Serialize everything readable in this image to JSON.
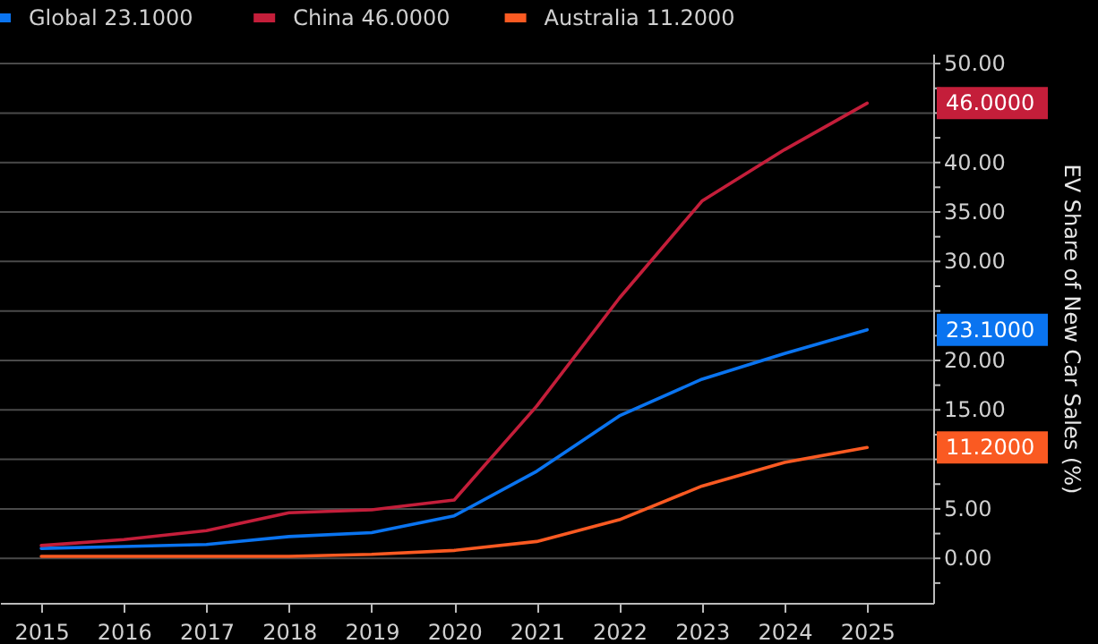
{
  "chart_data": {
    "type": "line",
    "ylabel": "EV Share of New Car Sales (%)",
    "x": [
      2015,
      2016,
      2017,
      2018,
      2019,
      2020,
      2021,
      2022,
      2023,
      2024,
      2025
    ],
    "series": [
      {
        "name": "Global 23.1000",
        "color": "#0a74f0",
        "values": [
          1.0,
          1.2,
          1.4,
          2.2,
          2.6,
          4.3,
          8.8,
          14.4,
          18.1,
          20.7,
          23.1
        ]
      },
      {
        "name": "China 46.0000",
        "color": "#c41e3a",
        "values": [
          1.3,
          1.9,
          2.8,
          4.6,
          4.9,
          5.9,
          15.4,
          26.3,
          36.1,
          41.3,
          46.0
        ]
      },
      {
        "name": "Australia 11.2000",
        "color": "#fa5a22",
        "values": [
          0.2,
          0.2,
          0.2,
          0.2,
          0.4,
          0.8,
          1.7,
          3.9,
          7.3,
          9.7,
          11.2
        ]
      }
    ],
    "annotations": [
      "23.1000",
      "46.0000",
      "11.2000"
    ],
    "xlim": [
      2014.5,
      2025.8
    ],
    "xticks": [
      2015,
      2016,
      2017,
      2018,
      2019,
      2020,
      2021,
      2022,
      2023,
      2024,
      2025
    ],
    "ylim": [
      -4.5,
      51
    ],
    "yticks": [
      {
        "value": -2.5,
        "label": null
      },
      {
        "value": 0,
        "label": "0.00"
      },
      {
        "value": 2.5,
        "label": null
      },
      {
        "value": 5,
        "label": "5.00"
      },
      {
        "value": 7.5,
        "label": null
      },
      {
        "value": 10,
        "label": null
      },
      {
        "value": 12.5,
        "label": null
      },
      {
        "value": 15,
        "label": "15.00"
      },
      {
        "value": 17.5,
        "label": null
      },
      {
        "value": 20,
        "label": "20.00"
      },
      {
        "value": 22.5,
        "label": null
      },
      {
        "value": 25,
        "label": null
      },
      {
        "value": 27.5,
        "label": null
      },
      {
        "value": 30,
        "label": "30.00"
      },
      {
        "value": 32.5,
        "label": null
      },
      {
        "value": 35,
        "label": "35.00"
      },
      {
        "value": 37.5,
        "label": null
      },
      {
        "value": 40,
        "label": "40.00"
      },
      {
        "value": 42.5,
        "label": null
      },
      {
        "value": 45,
        "label": null
      },
      {
        "value": 47.5,
        "label": null
      },
      {
        "value": 50,
        "label": "50.00"
      }
    ],
    "grid": "y",
    "legend": "top left",
    "marker": "none",
    "line_style": "solid"
  }
}
